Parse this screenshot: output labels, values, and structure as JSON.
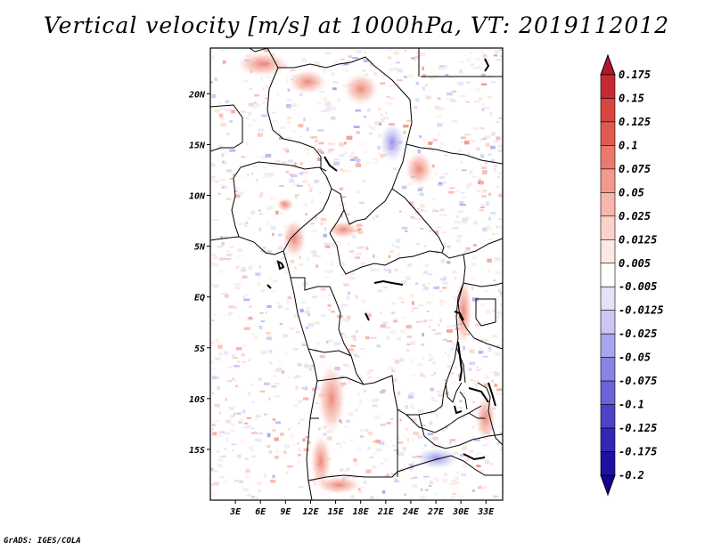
{
  "title": "Vertical velocity [m/s] at 1000hPa, VT: 2019112012",
  "credit": "GrADS: IGES/COLA",
  "map": {
    "lon_range": [
      0,
      35
    ],
    "lat_range": [
      -20,
      24.5
    ],
    "lon_ticks": [
      "3E",
      "6E",
      "9E",
      "12E",
      "15E",
      "18E",
      "21E",
      "24E",
      "27E",
      "30E",
      "33E"
    ],
    "lat_ticks": [
      "20N",
      "15N",
      "10N",
      "5N",
      "EQ",
      "5S",
      "10S",
      "15S"
    ]
  },
  "colorbar": {
    "labels": [
      "0.175",
      "0.15",
      "0.125",
      "0.1",
      "0.075",
      "0.05",
      "0.025",
      "0.0125",
      "0.005",
      "-0.005",
      "-0.0125",
      "-0.025",
      "-0.05",
      "-0.075",
      "-0.1",
      "-0.125",
      "-0.175",
      "-0.2"
    ],
    "colors": [
      "#b2182b",
      "#c62b33",
      "#d6453f",
      "#e05a4f",
      "#e97a6c",
      "#f19a8d",
      "#f6b7ac",
      "#fad2ca",
      "#fde8e3",
      "#ffffff",
      "#e3e2f8",
      "#cac7f3",
      "#aaa5ec",
      "#8983e3",
      "#6b63d8",
      "#4d43c8",
      "#3427b4",
      "#2010a0",
      "#160096"
    ]
  }
}
